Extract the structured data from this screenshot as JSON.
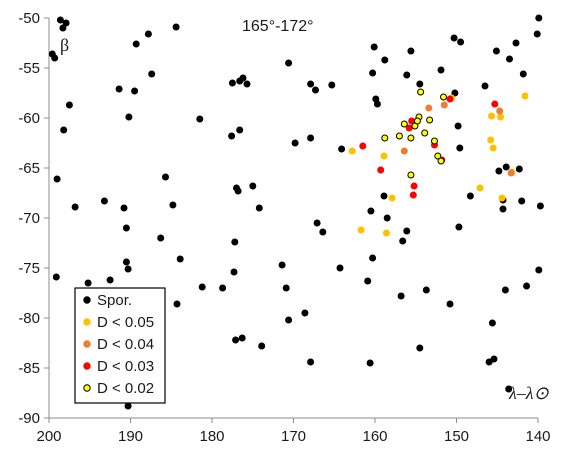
{
  "chart_data": {
    "type": "scatter",
    "title": "165°-172°",
    "ylabel": "β",
    "xlabel": "λ–λ⊙",
    "xlim": [
      200,
      140
    ],
    "ylim": [
      -90,
      -50
    ],
    "x_reversed": true,
    "grid": false,
    "legend_position": "bottom-left",
    "xticks": [
      "200",
      "190",
      "180",
      "170",
      "160",
      "150",
      "140"
    ],
    "yticks": [
      "-50",
      "-55",
      "-60",
      "-65",
      "-70",
      "-75",
      "-80",
      "-85",
      "-90"
    ],
    "series": [
      {
        "name": "Spor.",
        "marker": {
          "fill": "#000000",
          "stroke": "#000000",
          "shape": "circle"
        },
        "points": [
          [
            198.6,
            -50.2
          ],
          [
            197.9,
            -50.5
          ],
          [
            199.6,
            -53.6
          ],
          [
            199.3,
            -54.0
          ],
          [
            198.3,
            -51.0
          ],
          [
            197.5,
            -58.7
          ],
          [
            198.2,
            -61.2
          ],
          [
            199.0,
            -66.1
          ],
          [
            196.8,
            -68.9
          ],
          [
            199.1,
            -75.9
          ],
          [
            195.2,
            -76.5
          ],
          [
            193.2,
            -68.3
          ],
          [
            192.5,
            -76.2
          ],
          [
            189.3,
            -52.6
          ],
          [
            189.5,
            -57.3
          ],
          [
            190.2,
            -59.9
          ],
          [
            191.4,
            -57.1
          ],
          [
            187.8,
            -51.6
          ],
          [
            187.4,
            -55.6
          ],
          [
            184.4,
            -50.9
          ],
          [
            181.5,
            -60.1
          ],
          [
            185.7,
            -65.9
          ],
          [
            184.8,
            -68.7
          ],
          [
            190.8,
            -69.0
          ],
          [
            190.5,
            -71.0
          ],
          [
            186.3,
            -72.0
          ],
          [
            190.5,
            -74.4
          ],
          [
            190.3,
            -75.1
          ],
          [
            188.0,
            -77.5
          ],
          [
            190.6,
            -78.3
          ],
          [
            184.3,
            -78.6
          ],
          [
            183.9,
            -74.1
          ],
          [
            181.2,
            -76.9
          ],
          [
            190.3,
            -88.8
          ],
          [
            188.6,
            -87.8
          ],
          [
            176.6,
            -56.3
          ],
          [
            176.2,
            -56.0
          ],
          [
            175.7,
            -56.6
          ],
          [
            177.5,
            -56.5
          ],
          [
            177.6,
            -61.8
          ],
          [
            176.6,
            -61.2
          ],
          [
            177.0,
            -67.0
          ],
          [
            176.8,
            -67.3
          ],
          [
            175.0,
            -66.8
          ],
          [
            174.2,
            -69.0
          ],
          [
            177.2,
            -72.4
          ],
          [
            177.3,
            -75.4
          ],
          [
            178.7,
            -77.0
          ],
          [
            177.1,
            -82.2
          ],
          [
            176.3,
            -82.0
          ],
          [
            173.9,
            -82.8
          ],
          [
            170.6,
            -54.5
          ],
          [
            169.8,
            -62.5
          ],
          [
            167.9,
            -56.6
          ],
          [
            167.3,
            -57.2
          ],
          [
            165.3,
            -56.7
          ],
          [
            167.9,
            -62.0
          ],
          [
            167.1,
            -70.5
          ],
          [
            166.4,
            -71.4
          ],
          [
            164.1,
            -63.1
          ],
          [
            164.3,
            -75.0
          ],
          [
            170.9,
            -77.0
          ],
          [
            171.4,
            -74.7
          ],
          [
            170.6,
            -80.2
          ],
          [
            168.6,
            -79.5
          ],
          [
            167.9,
            -84.4
          ],
          [
            160.6,
            -84.5
          ],
          [
            160.1,
            -52.9
          ],
          [
            158.8,
            -54.2
          ],
          [
            160.3,
            -55.5
          ],
          [
            159.9,
            -58.1
          ],
          [
            159.7,
            -58.6
          ],
          [
            156.1,
            -55.7
          ],
          [
            155.6,
            -53.3
          ],
          [
            154.5,
            -56.6
          ],
          [
            151.9,
            -55.2
          ],
          [
            150.3,
            -52.0
          ],
          [
            149.5,
            -52.4
          ],
          [
            150.2,
            -57.5
          ],
          [
            149.8,
            -60.8
          ],
          [
            146.5,
            -56.8
          ],
          [
            145.1,
            -53.3
          ],
          [
            143.5,
            -54.1
          ],
          [
            142.7,
            -52.5
          ],
          [
            141.8,
            -55.6
          ],
          [
            140.1,
            -51.6
          ],
          [
            139.9,
            -50.0
          ],
          [
            149.6,
            -63.0
          ],
          [
            148.3,
            -67.8
          ],
          [
            144.8,
            -65.3
          ],
          [
            143.9,
            -64.9
          ],
          [
            142.3,
            -65.1
          ],
          [
            144.3,
            -68.2
          ],
          [
            142.0,
            -68.3
          ],
          [
            139.7,
            -68.8
          ],
          [
            144.3,
            -69.1
          ],
          [
            139.9,
            -75.2
          ],
          [
            141.4,
            -76.8
          ],
          [
            144.0,
            -77.2
          ],
          [
            145.6,
            -80.5
          ],
          [
            146.0,
            -84.4
          ],
          [
            145.4,
            -84.1
          ],
          [
            143.6,
            -87.1
          ],
          [
            149.7,
            -70.9
          ],
          [
            150.8,
            -78.6
          ],
          [
            153.7,
            -77.2
          ],
          [
            154.5,
            -83.0
          ],
          [
            156.6,
            -72.3
          ],
          [
            156.1,
            -71.3
          ],
          [
            158.5,
            -70.0
          ],
          [
            158.9,
            -67.8
          ],
          [
            160.5,
            -69.3
          ],
          [
            160.3,
            -74.0
          ],
          [
            160.9,
            -76.3
          ],
          [
            156.8,
            -77.8
          ]
        ]
      },
      {
        "name": "D < 0.05",
        "marker": {
          "fill": "#ffc000",
          "stroke": "#ffc000",
          "shape": "circle"
        },
        "points": [
          [
            162.8,
            -63.3
          ],
          [
            158.9,
            -63.8
          ],
          [
            157.9,
            -68.0
          ],
          [
            161.7,
            -71.2
          ],
          [
            158.6,
            -71.5
          ],
          [
            147.1,
            -67.0
          ],
          [
            145.5,
            -63.0
          ],
          [
            145.8,
            -62.2
          ],
          [
            141.6,
            -57.8
          ],
          [
            144.6,
            -59.9
          ],
          [
            145.7,
            -59.8
          ],
          [
            143.2,
            -65.4
          ],
          [
            144.4,
            -68.0
          ],
          [
            150.6,
            -58.0
          ]
        ]
      },
      {
        "name": "D < 0.04",
        "marker": {
          "fill": "#ed7d31",
          "stroke": "#ed7d31",
          "shape": "circle"
        },
        "points": [
          [
            156.4,
            -63.3
          ],
          [
            153.4,
            -59.0
          ],
          [
            151.5,
            -58.7
          ],
          [
            144.7,
            -59.3
          ],
          [
            143.3,
            -65.5
          ]
        ]
      },
      {
        "name": "D < 0.03",
        "marker": {
          "fill": "#ff0000",
          "stroke": "#ff0000",
          "shape": "circle"
        },
        "points": [
          [
            161.5,
            -62.8
          ],
          [
            159.3,
            -65.2
          ],
          [
            155.8,
            -61.0
          ],
          [
            155.5,
            -60.3
          ],
          [
            152.7,
            -62.7
          ],
          [
            155.2,
            -66.8
          ],
          [
            155.3,
            -67.7
          ],
          [
            150.8,
            -58.1
          ],
          [
            145.3,
            -58.6
          ],
          [
            151.8,
            -64.2
          ]
        ]
      },
      {
        "name": "D < 0.02",
        "marker": {
          "fill": "#ffff00",
          "stroke": "#000000",
          "shape": "circle"
        },
        "points": [
          [
            158.8,
            -62.0
          ],
          [
            157.0,
            -61.8
          ],
          [
            156.4,
            -60.6
          ],
          [
            155.6,
            -62.0
          ],
          [
            155.1,
            -60.8
          ],
          [
            154.6,
            -59.9
          ],
          [
            154.8,
            -60.3
          ],
          [
            153.9,
            -61.5
          ],
          [
            153.3,
            -60.2
          ],
          [
            152.7,
            -62.3
          ],
          [
            151.9,
            -64.3
          ],
          [
            152.3,
            -63.8
          ],
          [
            151.6,
            -57.9
          ],
          [
            154.4,
            -57.4
          ],
          [
            155.6,
            -65.7
          ]
        ]
      }
    ]
  }
}
